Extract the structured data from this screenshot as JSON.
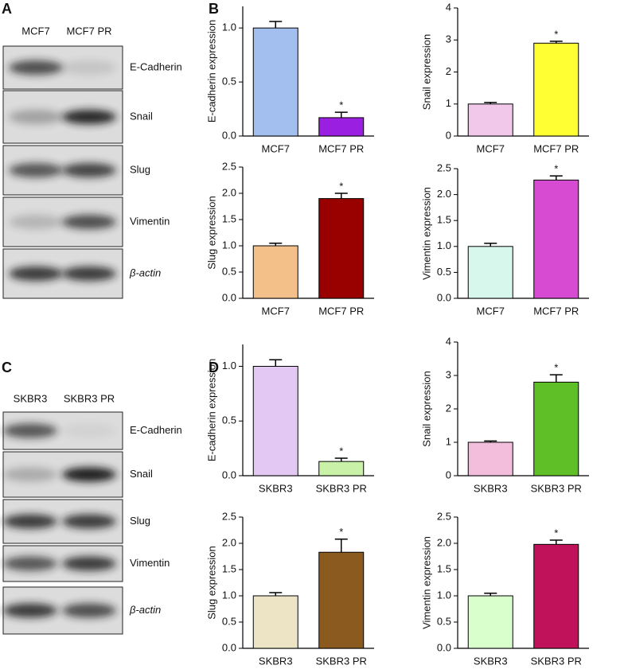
{
  "panel_labels": [
    "A",
    "B",
    "C",
    "D"
  ],
  "blots": [
    {
      "lanes": [
        "MCF7",
        "MCF7 PR"
      ],
      "proteins": [
        "E-Cadherin",
        "Snail",
        "Slug",
        "Vimentin",
        "β-actin"
      ]
    },
    {
      "lanes": [
        "SKBR3",
        "SKBR3 PR"
      ],
      "proteins": [
        "E-Cadherin",
        "Snail",
        "Slug",
        "Vimentin",
        "β-actin"
      ]
    }
  ],
  "chart_data": [
    {
      "type": "bar",
      "ylabel": "E-cadherin expression",
      "categories": [
        "MCF7",
        "MCF7 PR"
      ],
      "values": [
        1.0,
        0.17
      ],
      "errors": [
        0.06,
        0.05
      ],
      "colors": [
        "#a3bff0",
        "#9b1fe0"
      ],
      "annotation": "*",
      "ylim": [
        0,
        1.2
      ],
      "yticks": [
        {
          "value": 0,
          "label": "0.0"
        },
        0.5,
        {
          "value": 1,
          "label": "1.0"
        }
      ]
    },
    {
      "type": "bar",
      "ylabel": "Snail expression",
      "categories": [
        "MCF7",
        "MCF7 PR"
      ],
      "values": [
        1.0,
        2.9
      ],
      "errors": [
        0.05,
        0.06
      ],
      "colors": [
        "#f2c8ea",
        "#ffff33"
      ],
      "annotation": "*",
      "ylim": [
        0,
        4
      ],
      "yticks": [
        0,
        1,
        2,
        3,
        4
      ]
    },
    {
      "type": "bar",
      "ylabel": "Slug expression",
      "categories": [
        "MCF7",
        "MCF7 PR"
      ],
      "values": [
        1.0,
        1.9
      ],
      "errors": [
        0.05,
        0.1
      ],
      "colors": [
        "#f4c08a",
        "#990000"
      ],
      "annotation": "*",
      "ylim": [
        0,
        2.5
      ],
      "yticks": [
        {
          "value": 0,
          "label": "0.0"
        },
        0.5,
        {
          "value": 1,
          "label": "1.0"
        },
        1.5,
        {
          "value": 2,
          "label": "2.0"
        },
        2.5
      ]
    },
    {
      "type": "bar",
      "ylabel": "Vimentin expression",
      "categories": [
        "MCF7",
        "MCF7 PR"
      ],
      "values": [
        1.0,
        2.28
      ],
      "errors": [
        0.06,
        0.08
      ],
      "colors": [
        "#d8f7ec",
        "#d64bd1"
      ],
      "annotation": "*",
      "ylim": [
        0,
        2.5
      ],
      "yticks": [
        {
          "value": 0,
          "label": "0.0"
        },
        0.5,
        {
          "value": 1,
          "label": "1.0"
        },
        1.5,
        {
          "value": 2,
          "label": "2.0"
        },
        2.5
      ]
    },
    {
      "type": "bar",
      "ylabel": "E-cadherin expression",
      "categories": [
        "SKBR3",
        "SKBR3 PR"
      ],
      "values": [
        1.0,
        0.13
      ],
      "errors": [
        0.06,
        0.03
      ],
      "colors": [
        "#e2c8f2",
        "#c9f2a8"
      ],
      "annotation": "*",
      "ylim": [
        0,
        1.2
      ],
      "yticks": [
        {
          "value": 0,
          "label": "0.0"
        },
        0.5,
        {
          "value": 1,
          "label": "1.0"
        }
      ]
    },
    {
      "type": "bar",
      "ylabel": "Snail expression",
      "categories": [
        "SKBR3",
        "SKBR3 PR"
      ],
      "values": [
        1.0,
        2.8
      ],
      "errors": [
        0.04,
        0.22
      ],
      "colors": [
        "#f2bedb",
        "#5fbf26"
      ],
      "annotation": "*",
      "ylim": [
        0,
        4
      ],
      "yticks": [
        0,
        1,
        2,
        3,
        4
      ]
    },
    {
      "type": "bar",
      "ylabel": "Slug expression",
      "categories": [
        "SKBR3",
        "SKBR3 PR"
      ],
      "values": [
        1.0,
        1.83
      ],
      "errors": [
        0.06,
        0.25
      ],
      "colors": [
        "#ede4c6",
        "#8a5a1e"
      ],
      "annotation": "*",
      "ylim": [
        0,
        2.5
      ],
      "yticks": [
        {
          "value": 0,
          "label": "0.0"
        },
        0.5,
        {
          "value": 1,
          "label": "1.0"
        },
        1.5,
        {
          "value": 2,
          "label": "2.0"
        },
        2.5
      ]
    },
    {
      "type": "bar",
      "ylabel": "Vimentin expression",
      "categories": [
        "SKBR3",
        "SKBR3 PR"
      ],
      "values": [
        1.0,
        1.98
      ],
      "errors": [
        0.05,
        0.08
      ],
      "colors": [
        "#d8ffcc",
        "#c0125a"
      ],
      "annotation": "*",
      "ylim": [
        0,
        2.5
      ],
      "yticks": [
        {
          "value": 0,
          "label": "0.0"
        },
        0.5,
        {
          "value": 1,
          "label": "1.0"
        },
        1.5,
        {
          "value": 2,
          "label": "2.0"
        },
        2.5
      ]
    }
  ]
}
